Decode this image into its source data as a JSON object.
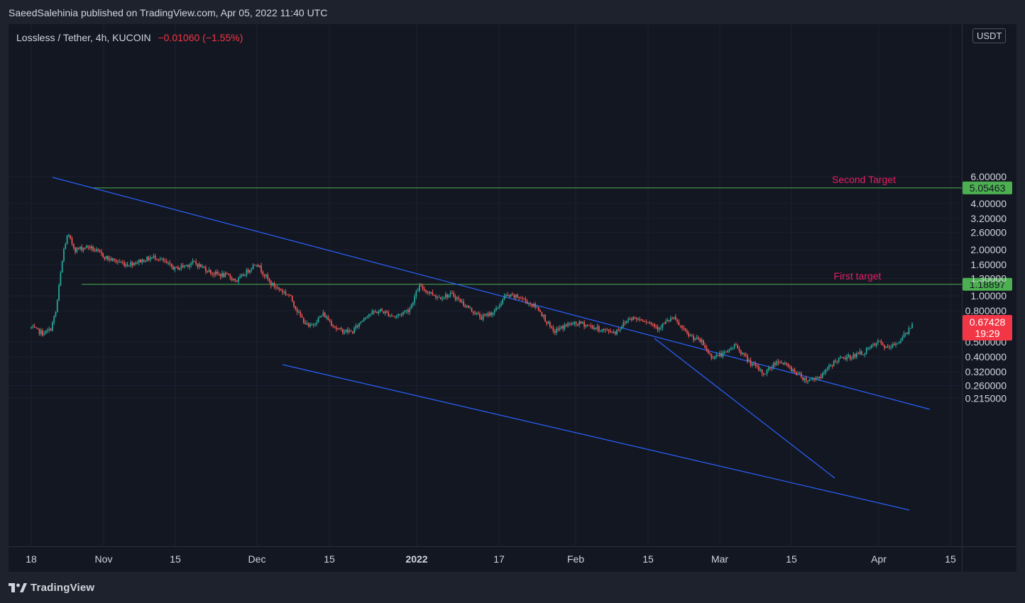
{
  "header": {
    "publish_line": "SaeedSalehinia published on TradingView.com, Apr 05, 2022 11:40 UTC"
  },
  "legend": {
    "symbol": "Lossless / Tether, 4h, KUCOIN",
    "change": "−0.01060 (−1.55%)"
  },
  "currency": "USDT",
  "colors": {
    "background": "#131722",
    "up": "#26a69a",
    "down": "#ef5350",
    "trendline": "#2962ff",
    "target_line": "#4caf50",
    "target_label": "#e91e63",
    "price_badge": "#f23645"
  },
  "chart_data": {
    "type": "candlestick",
    "scale": "log",
    "x_ticks": [
      {
        "label": "18",
        "bold": false
      },
      {
        "label": "Nov",
        "bold": false
      },
      {
        "label": "15",
        "bold": false
      },
      {
        "label": "Dec",
        "bold": false
      },
      {
        "label": "15",
        "bold": false
      },
      {
        "label": "2022",
        "bold": true
      },
      {
        "label": "17",
        "bold": false
      },
      {
        "label": "Feb",
        "bold": false
      },
      {
        "label": "15",
        "bold": false
      },
      {
        "label": "Mar",
        "bold": false
      },
      {
        "label": "15",
        "bold": false
      },
      {
        "label": "Apr",
        "bold": false
      },
      {
        "label": "15",
        "bold": false
      }
    ],
    "y_ticks": [
      {
        "value": 6.0,
        "label": "6.00000"
      },
      {
        "value": 4.0,
        "label": "4.00000"
      },
      {
        "value": 3.2,
        "label": "3.20000"
      },
      {
        "value": 2.6,
        "label": "2.60000"
      },
      {
        "value": 2.0,
        "label": "2.00000"
      },
      {
        "value": 1.6,
        "label": "1.60000"
      },
      {
        "value": 1.3,
        "label": "1.30000"
      },
      {
        "value": 1.0,
        "label": "1.00000"
      },
      {
        "value": 0.8,
        "label": "0.800000"
      },
      {
        "value": 0.5,
        "label": "0.500000"
      },
      {
        "value": 0.4,
        "label": "0.400000"
      },
      {
        "value": 0.32,
        "label": "0.320000"
      },
      {
        "value": 0.26,
        "label": "0.260000"
      },
      {
        "value": 0.215,
        "label": "0.215000"
      }
    ],
    "horizontal_levels": [
      {
        "label": "Second Target",
        "value": 5.05463,
        "badge": "5.05463"
      },
      {
        "label": "First target",
        "value": 1.18897,
        "badge": "1.18897"
      }
    ],
    "last_price": {
      "value": 0.67428,
      "label": "0.67428",
      "countdown": "19:29"
    },
    "price_path": [
      {
        "t": 0.0,
        "p": 0.62
      },
      {
        "t": 1.2,
        "p": 0.57
      },
      {
        "t": 2.0,
        "p": 0.6
      },
      {
        "t": 2.6,
        "p": 0.8
      },
      {
        "t": 3.0,
        "p": 1.3
      },
      {
        "t": 3.4,
        "p": 2.0
      },
      {
        "t": 3.8,
        "p": 2.5
      },
      {
        "t": 4.6,
        "p": 2.0
      },
      {
        "t": 6.0,
        "p": 2.1
      },
      {
        "t": 8.0,
        "p": 1.75
      },
      {
        "t": 10.0,
        "p": 1.6
      },
      {
        "t": 13.0,
        "p": 1.8
      },
      {
        "t": 15.0,
        "p": 1.5
      },
      {
        "t": 17.0,
        "p": 1.65
      },
      {
        "t": 19.0,
        "p": 1.4
      },
      {
        "t": 20.5,
        "p": 1.35
      },
      {
        "t": 21.5,
        "p": 1.25
      },
      {
        "t": 23.5,
        "p": 1.65
      },
      {
        "t": 25.0,
        "p": 1.2
      },
      {
        "t": 27.0,
        "p": 1.0
      },
      {
        "t": 28.0,
        "p": 0.75
      },
      {
        "t": 29.0,
        "p": 0.62
      },
      {
        "t": 30.5,
        "p": 0.76
      },
      {
        "t": 32.0,
        "p": 0.6
      },
      {
        "t": 33.5,
        "p": 0.58
      },
      {
        "t": 35.0,
        "p": 0.75
      },
      {
        "t": 36.5,
        "p": 0.8
      },
      {
        "t": 38.0,
        "p": 0.73
      },
      {
        "t": 39.5,
        "p": 0.82
      },
      {
        "t": 40.5,
        "p": 1.15
      },
      {
        "t": 42.5,
        "p": 0.98
      },
      {
        "t": 44.0,
        "p": 1.02
      },
      {
        "t": 45.5,
        "p": 0.85
      },
      {
        "t": 47.0,
        "p": 0.72
      },
      {
        "t": 48.5,
        "p": 0.8
      },
      {
        "t": 49.5,
        "p": 1.0
      },
      {
        "t": 51.0,
        "p": 0.98
      },
      {
        "t": 53.0,
        "p": 0.82
      },
      {
        "t": 54.5,
        "p": 0.58
      },
      {
        "t": 56.0,
        "p": 0.65
      },
      {
        "t": 57.5,
        "p": 0.66
      },
      {
        "t": 59.5,
        "p": 0.6
      },
      {
        "t": 61.0,
        "p": 0.58
      },
      {
        "t": 62.5,
        "p": 0.72
      },
      {
        "t": 64.0,
        "p": 0.7
      },
      {
        "t": 65.5,
        "p": 0.62
      },
      {
        "t": 67.0,
        "p": 0.72
      },
      {
        "t": 68.5,
        "p": 0.56
      },
      {
        "t": 70.0,
        "p": 0.5
      },
      {
        "t": 71.0,
        "p": 0.4
      },
      {
        "t": 72.5,
        "p": 0.42
      },
      {
        "t": 73.5,
        "p": 0.48
      },
      {
        "t": 75.0,
        "p": 0.37
      },
      {
        "t": 76.5,
        "p": 0.31
      },
      {
        "t": 78.0,
        "p": 0.38
      },
      {
        "t": 79.5,
        "p": 0.33
      },
      {
        "t": 81.0,
        "p": 0.28
      },
      {
        "t": 82.5,
        "p": 0.3
      },
      {
        "t": 84.0,
        "p": 0.38
      },
      {
        "t": 85.5,
        "p": 0.4
      },
      {
        "t": 87.0,
        "p": 0.43
      },
      {
        "t": 88.5,
        "p": 0.5
      },
      {
        "t": 89.5,
        "p": 0.45
      },
      {
        "t": 90.5,
        "p": 0.5
      },
      {
        "t": 91.5,
        "p": 0.58
      },
      {
        "t": 92.0,
        "p": 0.67
      }
    ]
  },
  "footer": {
    "brand": "TradingView"
  }
}
